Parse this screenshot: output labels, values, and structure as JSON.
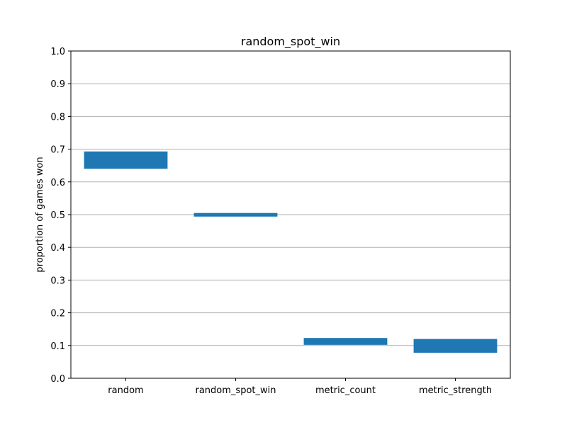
{
  "chart_data": {
    "type": "bar",
    "title": "random_spot_win",
    "xlabel": "",
    "ylabel": "proportion of games won",
    "categories": [
      "random",
      "random_spot_win",
      "metric_count",
      "metric_strength"
    ],
    "ranges": [
      {
        "low": 0.64,
        "high": 0.693
      },
      {
        "low": 0.494,
        "high": 0.505
      },
      {
        "low": 0.102,
        "high": 0.123
      },
      {
        "low": 0.078,
        "high": 0.12
      }
    ],
    "ylim": [
      0.0,
      1.0
    ],
    "yticks": [
      "0.0",
      "0.1",
      "0.2",
      "0.3",
      "0.4",
      "0.5",
      "0.6",
      "0.7",
      "0.8",
      "0.9",
      "1.0"
    ],
    "grid": "horizontal",
    "colors": {
      "bar": "#1f77b4",
      "grid": "#b0b0b0",
      "axis": "#000000"
    }
  }
}
